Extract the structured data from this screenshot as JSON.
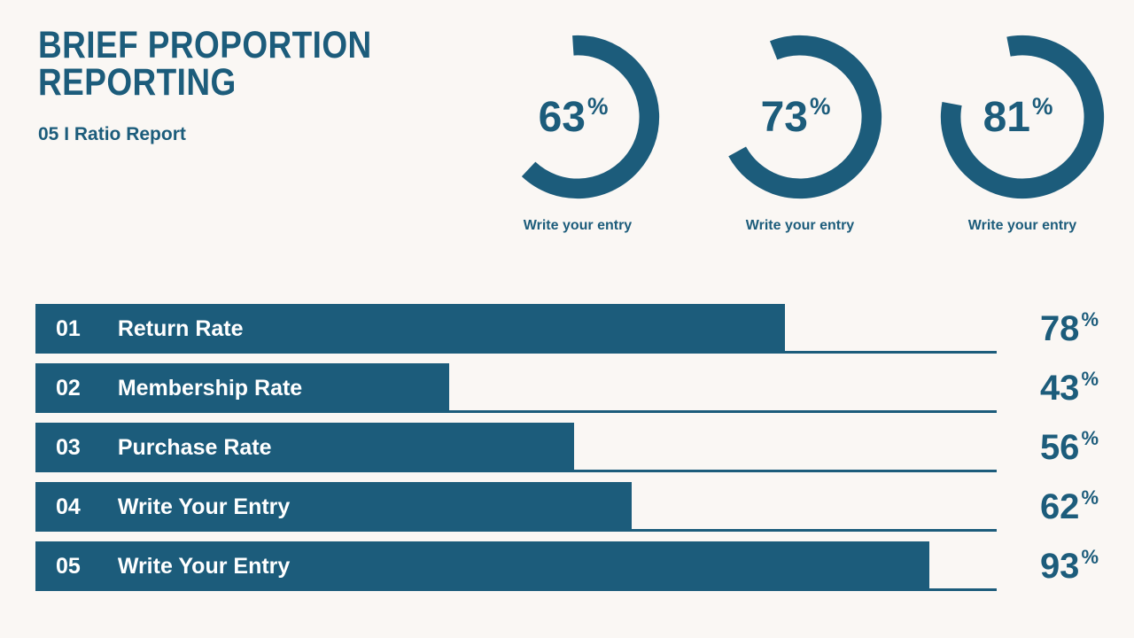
{
  "header": {
    "title_line1": "BRIEF PROPORTION",
    "title_line2": "REPORTING",
    "subtitle": "05 I Ratio Report"
  },
  "colors": {
    "accent": "#1C5C7B",
    "background": "#FAF7F4",
    "bar_text": "#FFFFFF"
  },
  "chart_data": [
    {
      "type": "pie",
      "variant": "donut-gauge",
      "unit": "%",
      "legend_position": "below",
      "items": [
        {
          "percent": 63,
          "label": "Write your entry"
        },
        {
          "percent": 73,
          "label": "Write your entry"
        },
        {
          "percent": 81,
          "label": "Write your entry"
        }
      ]
    },
    {
      "type": "bar",
      "orientation": "horizontal",
      "unit": "%",
      "xlim": [
        0,
        100
      ],
      "grid": false,
      "rows": [
        {
          "index": "01",
          "label": "Return Rate",
          "value": 78
        },
        {
          "index": "02",
          "label": "Membership Rate",
          "value": 43
        },
        {
          "index": "03",
          "label": "Purchase Rate",
          "value": 56
        },
        {
          "index": "04",
          "label": "Write Your Entry",
          "value": 62
        },
        {
          "index": "05",
          "label": "Write Your Entry",
          "value": 93
        }
      ]
    }
  ]
}
